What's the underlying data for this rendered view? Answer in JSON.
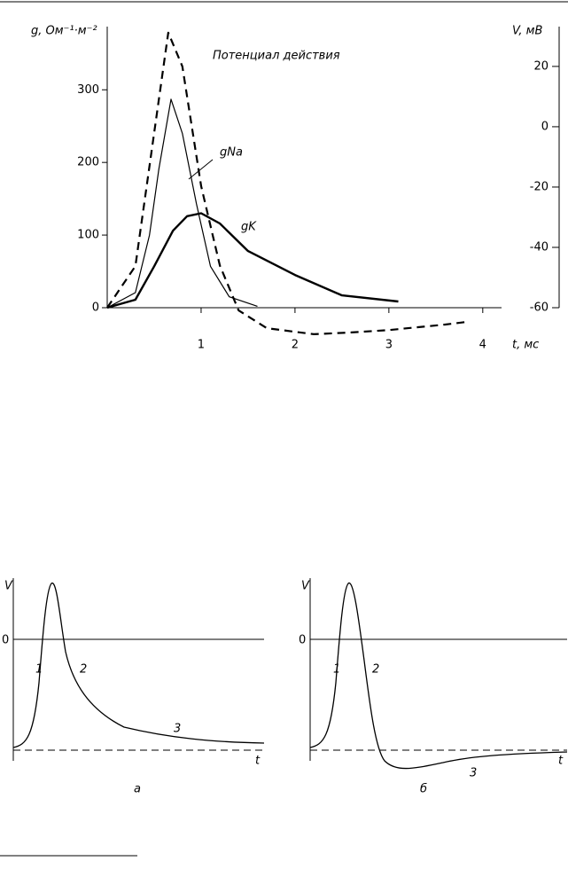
{
  "chart_data": [
    {
      "type": "line",
      "ylabel": "g, Ом⁻¹·м⁻²",
      "y2label": "V, мВ",
      "xlabel": "t, мс",
      "xlim": [
        0,
        4.2
      ],
      "xticks": [
        1,
        2,
        3,
        4
      ],
      "ylim": [
        0,
        387
      ],
      "yticks": [
        0,
        100,
        200,
        300
      ],
      "y2lim": [
        -60,
        33.2
      ],
      "y2ticks": [
        -60,
        -40,
        -20,
        0,
        20
      ],
      "series": [
        {
          "name": "Потенциал действия",
          "color": "#000",
          "style": "dashed",
          "axis": "y2",
          "x": [
            0,
            0.3,
            0.5,
            0.65,
            0.8,
            1.0,
            1.2,
            1.4,
            1.7,
            2.2,
            2.6,
            3.0,
            3.6,
            3.83
          ],
          "values": [
            -60,
            -46.2,
            -2,
            31.2,
            20,
            -19.7,
            -46,
            -60.9,
            -66.8,
            -68.8,
            -68.2,
            -67.4,
            -65.6,
            -64.7
          ]
        },
        {
          "name": "gNa",
          "color": "#000",
          "style": "thin",
          "x": [
            0,
            0.3,
            0.45,
            0.55,
            0.68,
            0.8,
            0.95,
            1.1,
            1.3,
            1.6
          ],
          "values": [
            0,
            20.7,
            100,
            191,
            287,
            240,
            143,
            57,
            15,
            2
          ]
        },
        {
          "name": "gK",
          "color": "#000",
          "style": "thick",
          "x": [
            0,
            0.3,
            0.5,
            0.7,
            0.85,
            1.0,
            1.2,
            1.5,
            2.0,
            2.5,
            3.1
          ],
          "values": [
            0,
            11,
            57,
            106,
            126,
            130,
            116,
            78,
            45,
            17,
            8.5
          ]
        }
      ]
    },
    {
      "type": "schematic",
      "variant": "a",
      "ylabel": "V",
      "zero_label": "0",
      "xlabel": "t",
      "caption": "а",
      "annotations": [
        "1",
        "2",
        "3"
      ]
    },
    {
      "type": "schematic",
      "variant": "b",
      "ylabel": "V",
      "zero_label": "0",
      "xlabel": "t",
      "caption": "б",
      "annotations": [
        "1",
        "2",
        "3"
      ]
    }
  ]
}
